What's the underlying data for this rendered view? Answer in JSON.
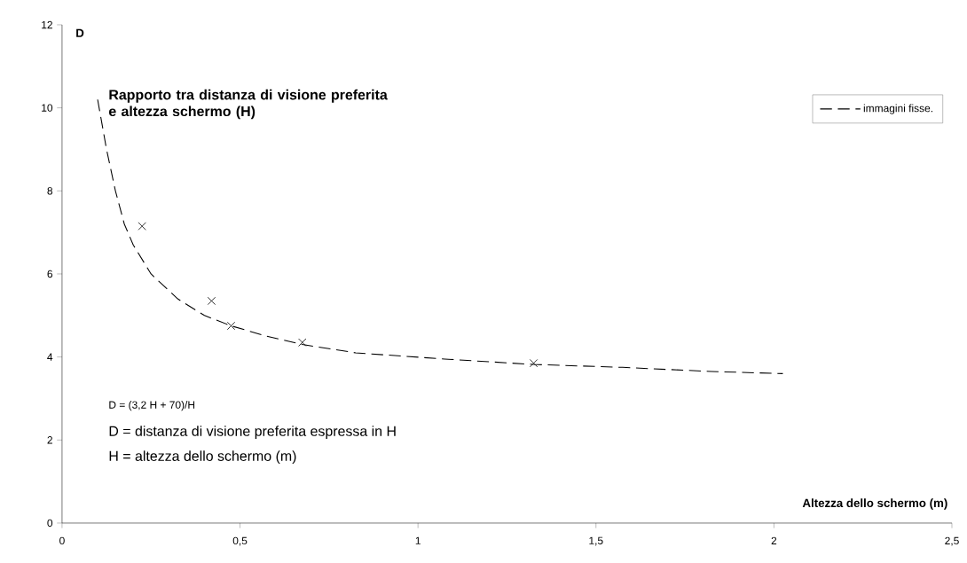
{
  "chart_data": {
    "type": "line",
    "xlabel": "Altezza dello schermo (m)",
    "ylabel": "D",
    "annotations": [
      "Rapporto tra distanza di visione preferita e altezza schermo (H)",
      "D = (3,2 H + 70)/H",
      "D = distanza di visione preferita espressa in H",
      "H = altezza dello schermo (m)"
    ],
    "xlim": [
      0,
      2.5
    ],
    "ylim": [
      0,
      12
    ],
    "xticks": [
      0,
      {
        "value": 0.5,
        "label": "0,5"
      },
      1,
      {
        "value": 1.5,
        "label": "1,5"
      },
      2,
      {
        "value": 2.5,
        "label": "2,5"
      }
    ],
    "yticks": [
      0,
      2,
      4,
      6,
      8,
      10,
      12
    ],
    "grid": false,
    "legend": "top right",
    "series": [
      {
        "name": "immagini fisse.",
        "color": "#000000",
        "line_style": "dashed",
        "marker": "none",
        "x": [
          0.1,
          0.125,
          0.15,
          0.175,
          0.2,
          0.25,
          0.325,
          0.4,
          0.475,
          0.575,
          0.675,
          0.825,
          1.075,
          1.325,
          1.575,
          1.825,
          2.025
        ],
        "values": [
          10.2,
          9.0,
          8.0,
          7.2,
          6.7,
          6.0,
          5.4,
          5.0,
          4.75,
          4.5,
          4.3,
          4.1,
          3.95,
          3.82,
          3.75,
          3.65,
          3.6
        ]
      },
      {
        "type": "scatter",
        "color": "#000000",
        "marker": "cross",
        "x": [
          0.225,
          0.42,
          0.475,
          0.675,
          1.325
        ],
        "values": [
          7.15,
          5.35,
          4.75,
          4.35,
          3.85
        ]
      }
    ]
  }
}
